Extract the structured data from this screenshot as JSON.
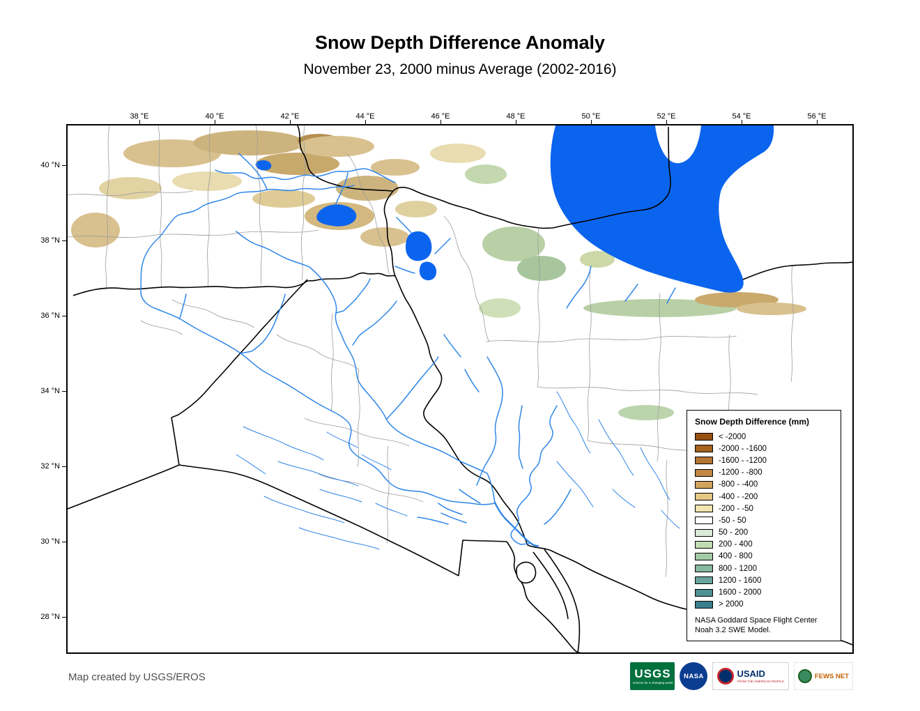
{
  "title": "Snow Depth Difference Anomaly",
  "subtitle": "November 23, 2000 minus Average (2002-2016)",
  "axes": {
    "lon_ticks": [
      "38 °E",
      "40 °E",
      "42 °E",
      "44 °E",
      "46 °E",
      "48 °E",
      "50 °E",
      "52 °E",
      "54 °E",
      "56 °E"
    ],
    "lat_ticks": [
      "40 °N",
      "38 °N",
      "36 °N",
      "34 °N",
      "32 °N",
      "30 °N",
      "28 °N"
    ]
  },
  "legend": {
    "title": "Snow Depth Difference (mm)",
    "entries": [
      {
        "label": "< -2000",
        "color": "#96500f"
      },
      {
        "label": "-2000 - -1600",
        "color": "#a6621f"
      },
      {
        "label": "-1600 - -1200",
        "color": "#b37532"
      },
      {
        "label": "-1200 - -800",
        "color": "#c18945"
      },
      {
        "label": "-800 - -400",
        "color": "#d2a55e"
      },
      {
        "label": "-400 - -200",
        "color": "#e3c783"
      },
      {
        "label": "-200 - -50",
        "color": "#f1e4ae"
      },
      {
        "label": "-50 - 50",
        "color": "#ffffff"
      },
      {
        "label": "50 - 200",
        "color": "#dcead9"
      },
      {
        "label": "200 - 400",
        "color": "#c1dcb2"
      },
      {
        "label": "400 - 800",
        "color": "#a4cba5"
      },
      {
        "label": "800 - 1200",
        "color": "#86b8a0"
      },
      {
        "label": "1200 - 1600",
        "color": "#69a49b"
      },
      {
        "label": "1600 - 2000",
        "color": "#4f9195"
      },
      {
        "label": "> 2000",
        "color": "#3b7f8d"
      }
    ],
    "source_line1": "NASA Goddard Space Flight Center",
    "source_line2": "Noah 3.2 SWE Model."
  },
  "footer": {
    "credit": "Map created by USGS/EROS"
  },
  "logos": {
    "usgs": {
      "text": "USGS",
      "tagline": "science for a changing world",
      "color": "#00703c"
    },
    "nasa": {
      "text": "NASA",
      "color": "#0b3d91"
    },
    "usaid": {
      "text": "USAID",
      "tagline": "FROM THE AMERICAN PEOPLE",
      "color_blue": "#002f6c",
      "color_red": "#c1272d"
    },
    "fewsnet": {
      "text": "FEWS NET",
      "color": "#c25e00"
    }
  },
  "map_colors": {
    "water": "#0b64ee",
    "river": "#2e86e8",
    "country_border": "#000000",
    "admin_border": "#9b9b9b",
    "land": "#ffffff"
  }
}
